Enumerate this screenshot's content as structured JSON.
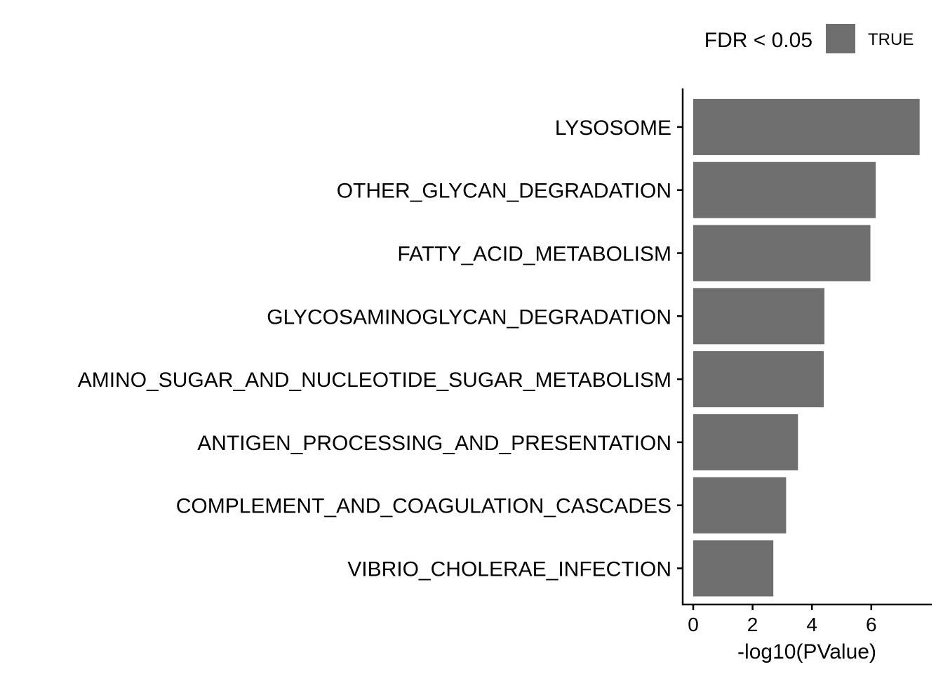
{
  "chart_data": {
    "type": "bar",
    "orientation": "horizontal",
    "categories": [
      "LYSOSOME",
      "OTHER_GLYCAN_DEGRADATION",
      "FATTY_ACID_METABOLISM",
      "GLYCOSAMINOGLYCAN_DEGRADATION",
      "AMINO_SUGAR_AND_NUCLEOTIDE_SUGAR_METABOLISM",
      "ANTIGEN_PROCESSING_AND_PRESENTATION",
      "COMPLEMENT_AND_COAGULATION_CASCADES",
      "VIBRIO_CHOLERAE_INFECTION"
    ],
    "values": [
      7.63,
      6.15,
      5.97,
      4.42,
      4.4,
      3.53,
      3.13,
      2.7
    ],
    "xlabel": "-log10(PValue)",
    "ylabel": "",
    "xlim": [
      0,
      7.8
    ],
    "xticks": [
      0,
      2,
      4,
      6
    ],
    "grid": false,
    "bar_color": "#6e6e6e",
    "legend": {
      "title": "FDR < 0.05",
      "placement": "top-right",
      "entries": [
        {
          "label": "TRUE",
          "color": "#6e6e6e"
        }
      ]
    }
  }
}
